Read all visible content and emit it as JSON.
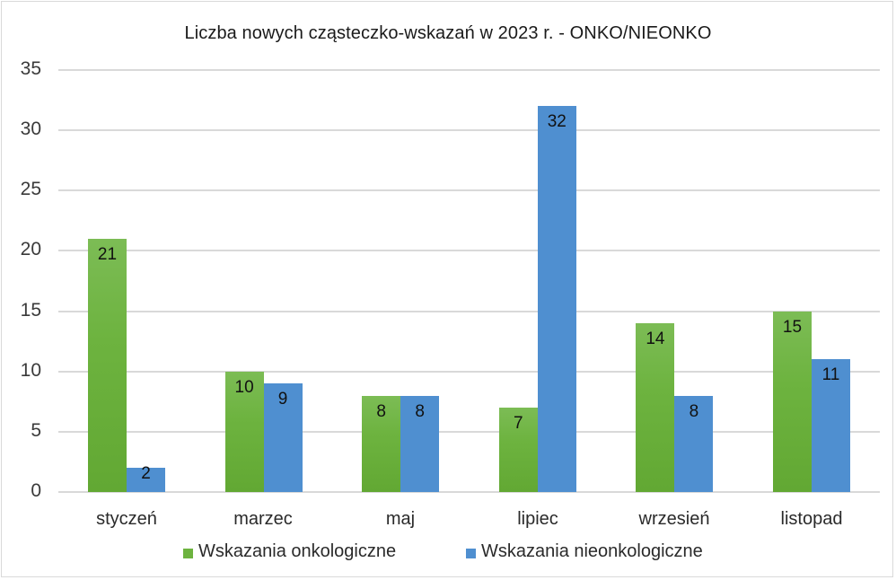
{
  "chart_data": {
    "type": "bar",
    "title": "Liczba nowych cząsteczko-wskazań w 2023 r. - ONKO/NIEONKO",
    "xlabel": "",
    "ylabel": "",
    "ylim": [
      0,
      35
    ],
    "yticks": [
      0,
      5,
      10,
      15,
      20,
      25,
      30,
      35
    ],
    "grid": true,
    "legend_position": "bottom",
    "categories": [
      "styczeń",
      "marzec",
      "maj",
      "lipiec",
      "wrzesień",
      "listopad"
    ],
    "series": [
      {
        "name": "Wskazania onkologiczne",
        "color": "#6db33f",
        "values": [
          21,
          10,
          8,
          7,
          14,
          15
        ]
      },
      {
        "name": "Wskazania nieonkologiczne",
        "color": "#4f8fd0",
        "values": [
          2,
          9,
          8,
          32,
          8,
          11
        ]
      }
    ]
  },
  "yticks_labels": [
    "35",
    "30",
    "25",
    "20",
    "15",
    "10",
    "5",
    "0"
  ],
  "data_labels": {
    "onko": [
      "21",
      "10",
      "8",
      "7",
      "14",
      "15"
    ],
    "nieonko": [
      "2",
      "9",
      "8",
      "32",
      "8",
      "11"
    ]
  }
}
